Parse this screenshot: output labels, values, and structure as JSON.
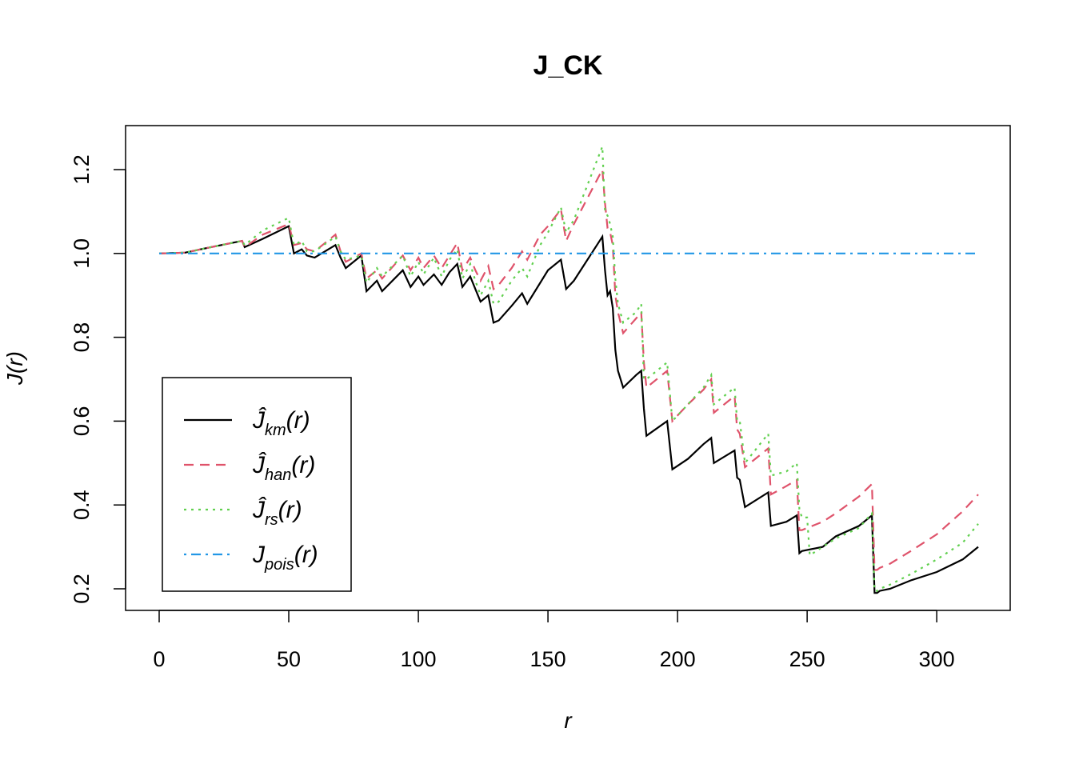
{
  "chart_data": {
    "type": "line",
    "title": "J_CK",
    "xlabel": "r",
    "ylabel": "J(r)",
    "xlim": [
      0,
      316
    ],
    "ylim": [
      0.16,
      1.31
    ],
    "xticks": [
      0,
      50,
      100,
      150,
      200,
      250,
      300
    ],
    "yticks": [
      0.2,
      0.4,
      0.6,
      0.8,
      1.0,
      1.2
    ],
    "xtick_labels": [
      "0",
      "50",
      "100",
      "150",
      "200",
      "250",
      "300"
    ],
    "ytick_labels": [
      "0.2",
      "0.4",
      "0.6",
      "0.8",
      "1.0",
      "1.2"
    ],
    "grid": false,
    "legend_position": "bottom-left",
    "series": [
      {
        "key": "km",
        "name": "Ĵkm(r)",
        "legend_main": "Ĵ",
        "legend_sub": "km",
        "legend_tail": "(r)",
        "color": "#000000",
        "dash": "solid",
        "x": [
          0,
          10,
          20,
          32,
          33,
          40,
          50,
          52,
          55,
          57,
          60,
          68,
          70,
          72,
          78,
          80,
          84,
          86,
          94,
          97,
          100,
          102,
          106,
          109,
          112,
          115,
          117,
          120,
          122,
          124,
          127,
          129,
          131,
          136,
          140,
          142,
          147,
          150,
          155,
          157,
          160,
          171,
          172,
          173,
          174,
          175,
          176,
          177,
          179,
          184,
          186,
          187,
          188,
          196,
          198,
          204,
          210,
          213,
          214,
          222,
          223,
          224,
          226,
          235,
          236,
          242,
          246,
          247,
          248,
          256,
          261,
          270,
          275,
          276,
          277,
          278,
          282,
          290,
          300,
          310,
          316
        ],
        "y": [
          1.0,
          1.002,
          1.015,
          1.03,
          1.015,
          1.035,
          1.065,
          1.0,
          1.01,
          0.995,
          0.99,
          1.02,
          0.99,
          0.965,
          0.995,
          0.91,
          0.935,
          0.91,
          0.96,
          0.92,
          0.945,
          0.925,
          0.95,
          0.925,
          0.955,
          0.975,
          0.92,
          0.945,
          0.915,
          0.885,
          0.9,
          0.835,
          0.84,
          0.875,
          0.905,
          0.88,
          0.93,
          0.96,
          0.985,
          0.915,
          0.935,
          1.04,
          0.96,
          0.9,
          0.91,
          0.87,
          0.77,
          0.72,
          0.68,
          0.71,
          0.72,
          0.63,
          0.565,
          0.6,
          0.485,
          0.51,
          0.545,
          0.56,
          0.5,
          0.53,
          0.465,
          0.46,
          0.395,
          0.43,
          0.35,
          0.36,
          0.375,
          0.285,
          0.29,
          0.3,
          0.325,
          0.35,
          0.375,
          0.19,
          0.19,
          0.195,
          0.2,
          0.22,
          0.24,
          0.27,
          0.3
        ]
      },
      {
        "key": "han",
        "name": "Ĵhan(r)",
        "legend_main": "Ĵ",
        "legend_sub": "han",
        "legend_tail": "(r)",
        "color": "#DF536B",
        "dash": "dashed",
        "x": [
          0,
          10,
          20,
          32,
          33,
          40,
          50,
          52,
          55,
          57,
          60,
          68,
          70,
          72,
          78,
          80,
          84,
          86,
          94,
          97,
          100,
          102,
          106,
          109,
          112,
          115,
          117,
          120,
          122,
          124,
          127,
          129,
          131,
          136,
          140,
          142,
          147,
          150,
          155,
          157,
          160,
          171,
          172,
          173,
          174,
          175,
          176,
          177,
          179,
          184,
          186,
          187,
          188,
          196,
          198,
          204,
          210,
          213,
          214,
          222,
          223,
          224,
          226,
          235,
          236,
          242,
          246,
          247,
          248,
          256,
          261,
          270,
          275,
          276,
          277,
          278,
          282,
          290,
          300,
          310,
          316
        ],
        "y": [
          1.0,
          1.002,
          1.015,
          1.03,
          1.015,
          1.045,
          1.07,
          1.02,
          1.025,
          1.01,
          1.005,
          1.045,
          1.005,
          0.98,
          1.0,
          0.94,
          0.96,
          0.94,
          0.995,
          0.96,
          0.99,
          0.965,
          0.995,
          0.965,
          0.995,
          1.025,
          0.96,
          0.99,
          0.96,
          0.935,
          0.97,
          0.915,
          0.925,
          0.965,
          1.005,
          0.985,
          1.045,
          1.065,
          1.105,
          1.03,
          1.07,
          1.2,
          1.12,
          1.06,
          1.05,
          1.02,
          0.9,
          0.86,
          0.81,
          0.845,
          0.86,
          0.74,
          0.68,
          0.72,
          0.6,
          0.64,
          0.675,
          0.7,
          0.62,
          0.66,
          0.58,
          0.57,
          0.49,
          0.535,
          0.425,
          0.445,
          0.46,
          0.34,
          0.34,
          0.36,
          0.38,
          0.42,
          0.45,
          0.245,
          0.245,
          0.25,
          0.26,
          0.29,
          0.33,
          0.385,
          0.425
        ]
      },
      {
        "key": "rs",
        "name": "Ĵrs(r)",
        "legend_main": "Ĵ",
        "legend_sub": "rs",
        "legend_tail": "(r)",
        "color": "#61D04F",
        "dash": "dotted",
        "x": [
          0,
          10,
          20,
          32,
          33,
          40,
          50,
          52,
          55,
          57,
          60,
          68,
          70,
          72,
          78,
          80,
          84,
          86,
          94,
          97,
          100,
          102,
          106,
          109,
          112,
          115,
          117,
          120,
          122,
          124,
          127,
          129,
          131,
          136,
          140,
          142,
          147,
          150,
          155,
          157,
          160,
          171,
          172,
          173,
          174,
          175,
          176,
          177,
          179,
          184,
          186,
          187,
          188,
          196,
          198,
          204,
          210,
          213,
          214,
          222,
          223,
          224,
          226,
          235,
          236,
          242,
          246,
          247,
          248,
          250,
          251,
          256,
          261,
          270,
          275,
          276,
          277,
          278,
          282,
          290,
          300,
          310,
          316
        ],
        "y": [
          1.0,
          1.002,
          1.015,
          1.03,
          1.02,
          1.055,
          1.085,
          1.02,
          1.03,
          1.005,
          1.005,
          1.04,
          1.005,
          0.985,
          0.995,
          0.93,
          0.965,
          0.945,
          0.995,
          0.945,
          0.98,
          0.95,
          0.99,
          0.945,
          0.985,
          1.01,
          0.94,
          0.975,
          0.935,
          0.9,
          0.935,
          0.88,
          0.885,
          0.935,
          0.965,
          0.945,
          1.02,
          1.05,
          1.11,
          1.05,
          1.08,
          1.255,
          1.1,
          1.09,
          1.07,
          1.04,
          0.94,
          0.88,
          0.835,
          0.86,
          0.88,
          0.7,
          0.7,
          0.74,
          0.6,
          0.64,
          0.68,
          0.71,
          0.64,
          0.68,
          0.6,
          0.6,
          0.5,
          0.57,
          0.47,
          0.48,
          0.5,
          0.39,
          0.37,
          0.37,
          0.28,
          0.3,
          0.32,
          0.345,
          0.38,
          0.195,
          0.195,
          0.2,
          0.21,
          0.235,
          0.27,
          0.31,
          0.355
        ]
      },
      {
        "key": "pois",
        "name": "Jpois(r)",
        "legend_main": "J",
        "legend_sub": "pois",
        "legend_tail": "(r)",
        "color": "#2297E6",
        "dash": "dotdash",
        "x": [
          0,
          316
        ],
        "y": [
          1.0,
          1.0
        ]
      }
    ]
  }
}
